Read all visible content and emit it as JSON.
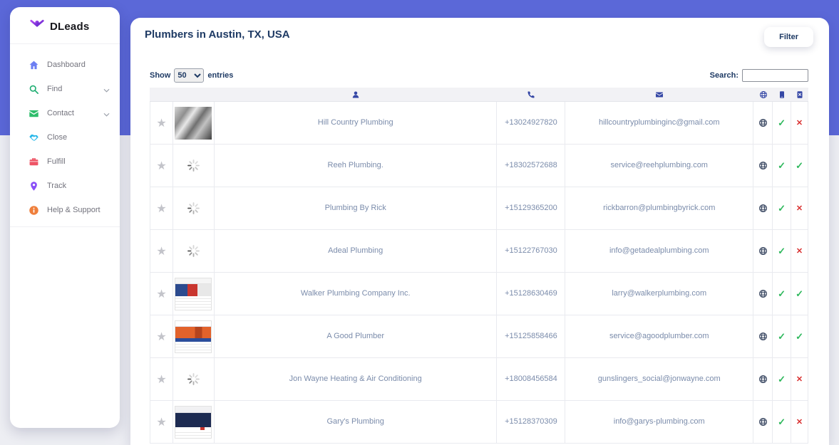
{
  "app": {
    "name": "DLeads"
  },
  "colors": {
    "band": "#5b68d8",
    "page": "#edeef3",
    "title_navy": "#1e3a64",
    "header_icon": "#3547a5",
    "check_green": "#2eb85c",
    "cross_red": "#d93030"
  },
  "sidebar": {
    "logo_text": "DLeads",
    "items": [
      {
        "label": "Dashboard",
        "icon": "home-icon",
        "color": "#6d7ff2",
        "chevron": false
      },
      {
        "label": "Find",
        "icon": "search-icon",
        "color": "#1fae72",
        "chevron": true
      },
      {
        "label": "Contact",
        "icon": "mail-icon",
        "color": "#2ebd6b",
        "chevron": true
      },
      {
        "label": "Close",
        "icon": "handshake-icon",
        "color": "#28b7e9",
        "chevron": false
      },
      {
        "label": "Fulfill",
        "icon": "briefcase-icon",
        "color": "#ee5566",
        "chevron": false
      },
      {
        "label": "Track",
        "icon": "map-pin-icon",
        "color": "#8a50f7",
        "chevron": false
      },
      {
        "label": "Help & Support",
        "icon": "info-icon",
        "color": "#ef7f3c",
        "chevron": false
      }
    ]
  },
  "main": {
    "title": "Plumbers in Austin, TX, USA",
    "filter_button": "Filter",
    "table_controls": {
      "show_label": "Show",
      "page_size": "50",
      "entries_label": "entries",
      "search_label": "Search:",
      "search_value": ""
    },
    "table": {
      "columns": [
        {
          "name": "favorite",
          "icon": ""
        },
        {
          "name": "thumbnail",
          "icon": ""
        },
        {
          "name": "business-name",
          "icon": "person-icon"
        },
        {
          "name": "phone",
          "icon": "phone-icon"
        },
        {
          "name": "email",
          "icon": "envelope-icon"
        },
        {
          "name": "website",
          "icon": "globe-icon"
        },
        {
          "name": "mobile",
          "icon": "mobile-icon"
        },
        {
          "name": "mobile-invalid",
          "icon": "mobile-x-icon"
        }
      ],
      "rows": [
        {
          "name": "Hill Country Plumbing",
          "phone": "+13024927820",
          "email": "hillcountryplumbinginc@gmail.com",
          "thumb": "photo",
          "website": true,
          "status_a": "check",
          "status_b": "cross"
        },
        {
          "name": "Reeh Plumbing.",
          "phone": "+18302572688",
          "email": "service@reehplumbing.com",
          "thumb": "loading",
          "website": true,
          "status_a": "check",
          "status_b": "check"
        },
        {
          "name": "Plumbing By Rick",
          "phone": "+15129365200",
          "email": "rickbarron@plumbingbyrick.com",
          "thumb": "loading",
          "website": true,
          "status_a": "check",
          "status_b": "cross"
        },
        {
          "name": "Adeal Plumbing",
          "phone": "+15122767030",
          "email": "info@getadealplumbing.com",
          "thumb": "loading",
          "website": true,
          "status_a": "check",
          "status_b": "cross"
        },
        {
          "name": "Walker Plumbing Company Inc.",
          "phone": "+15128630469",
          "email": "larry@walkerplumbing.com",
          "thumb": "site-red-blue",
          "website": true,
          "status_a": "check",
          "status_b": "check"
        },
        {
          "name": "A Good Plumber",
          "phone": "+15125858466",
          "email": "service@agoodplumber.com",
          "thumb": "site-orange",
          "website": true,
          "status_a": "check",
          "status_b": "check"
        },
        {
          "name": "Jon Wayne Heating & Air Conditioning",
          "phone": "+18008456584",
          "email": "gunslingers_social@jonwayne.com",
          "thumb": "loading",
          "website": true,
          "status_a": "check",
          "status_b": "cross"
        },
        {
          "name": "Gary's Plumbing",
          "phone": "+15128370309",
          "email": "info@garys-plumbing.com",
          "thumb": "site-navy",
          "website": true,
          "status_a": "check",
          "status_b": "cross"
        }
      ]
    }
  }
}
